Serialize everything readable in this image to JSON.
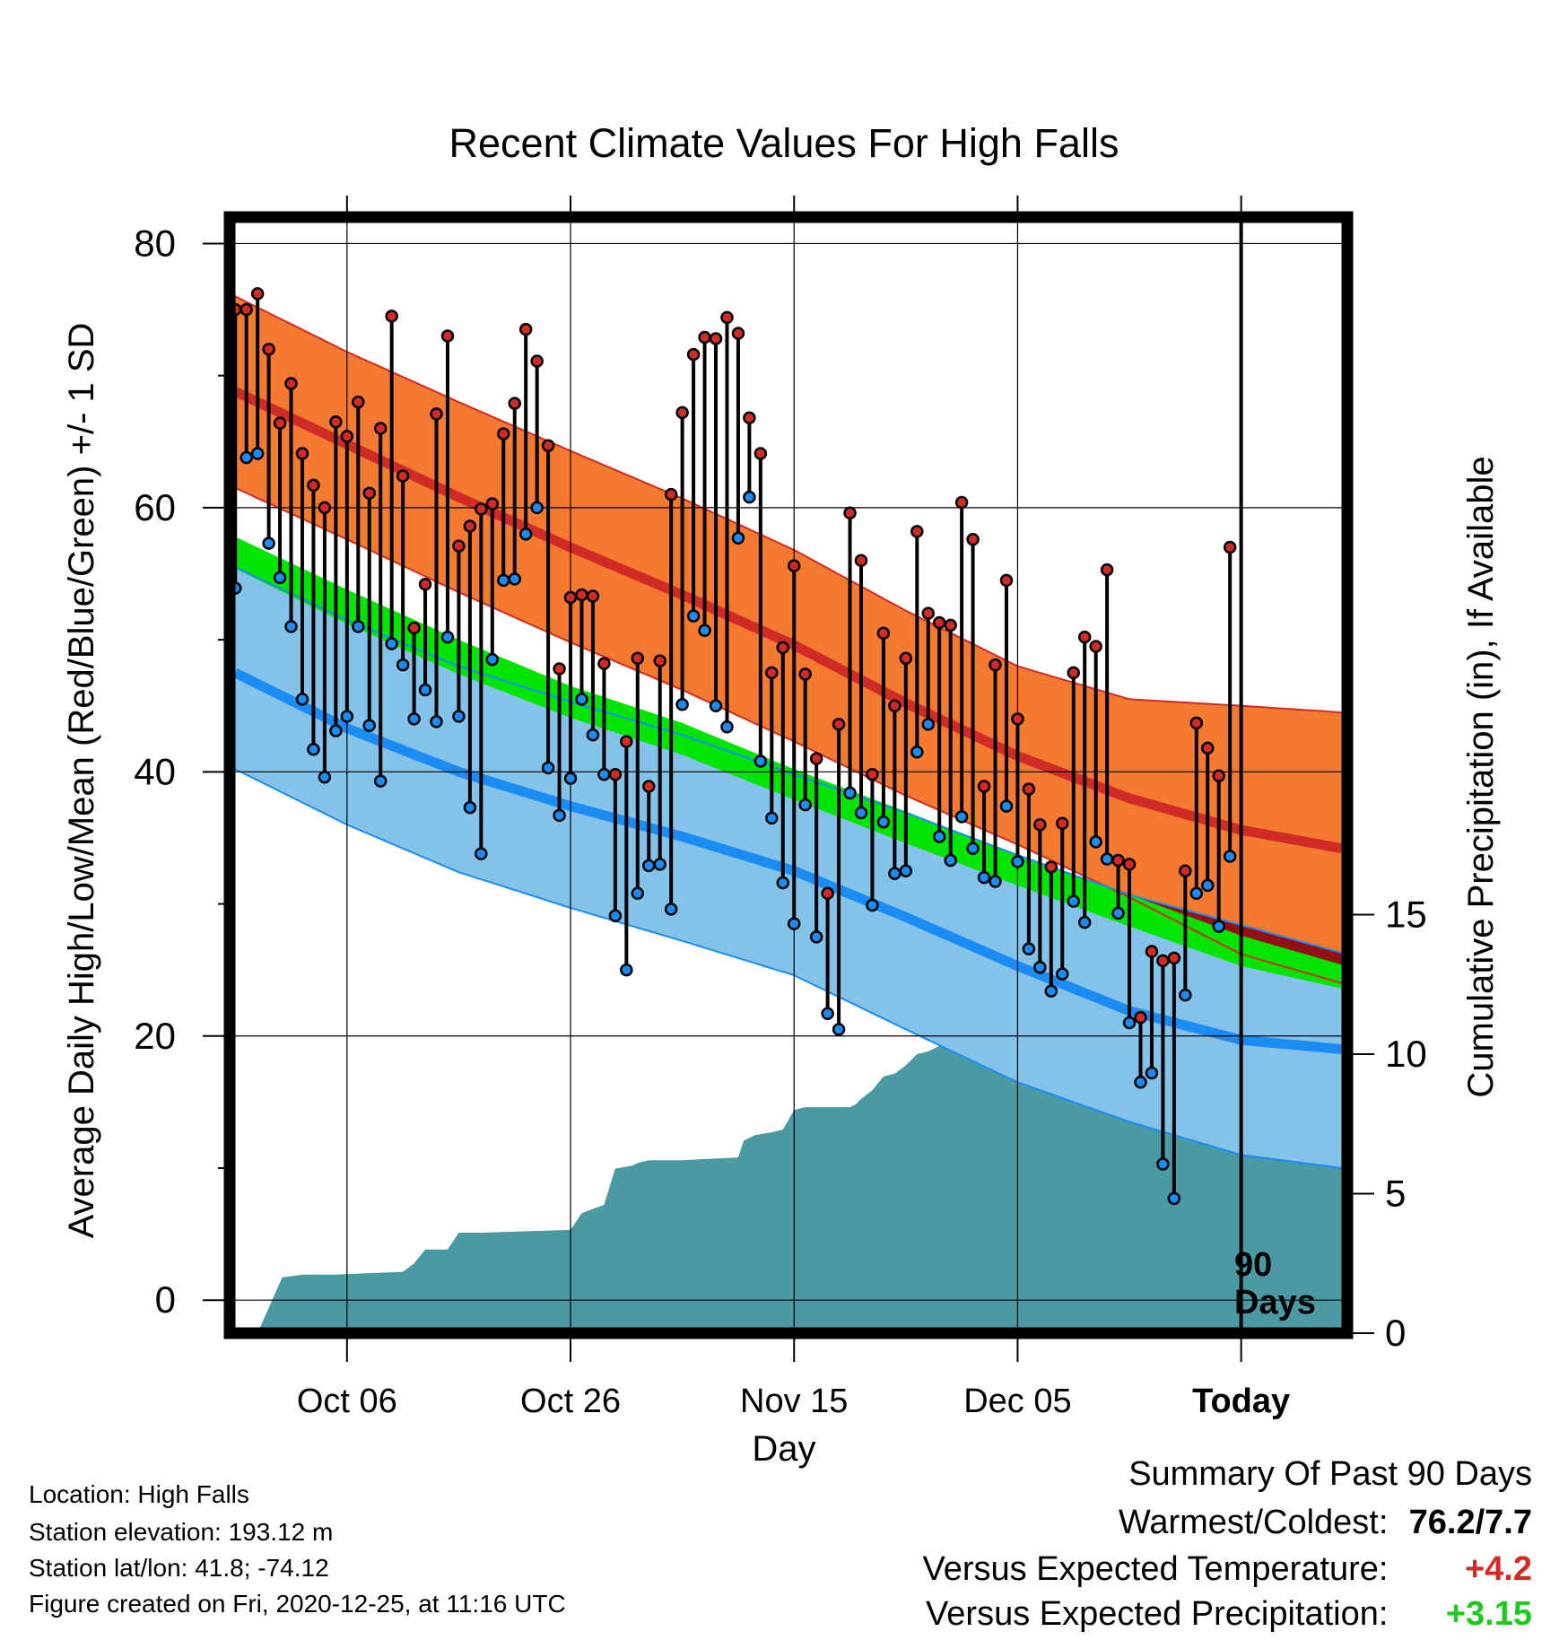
{
  "chart_data": {
    "type": "line",
    "title": "Recent Climate Values For High Falls",
    "xlabel": "Day",
    "ylabel": "Average Daily High/Low/Mean (Red/Blue/Green) +/- 1 SD",
    "y2label": "Cumulative Precipitation (in), If Available",
    "ylim": [
      -2.5,
      82
    ],
    "y2lim": [
      0,
      40
    ],
    "yticks": [
      0,
      20,
      40,
      60,
      80
    ],
    "y2ticks": [
      0,
      5,
      10,
      15
    ],
    "x_tick_days": [
      10,
      30,
      50,
      70,
      90
    ],
    "x_tick_labels": [
      "Oct 06",
      "Oct 26",
      "Nov 15",
      "Dec 05",
      "Today"
    ],
    "xlim": [
      -0.5,
      99.5
    ],
    "today_day": 90,
    "today_label_line1": "90",
    "today_label_line2": "Days",
    "grid": true,
    "colors": {
      "high_band": "#f47a30",
      "high_mean": "#d02b26",
      "low_band": "#85c2e9",
      "low_mean": "#1b8cf3",
      "mean_band": "#00e400",
      "overlap": "#941017",
      "precip": "#4a9aa3",
      "high_point": "#d02b26",
      "low_point": "#1b8cf3"
    },
    "normals": {
      "days": [
        0,
        10,
        20,
        30,
        40,
        50,
        60,
        70,
        80,
        90,
        99
      ],
      "high_mean": [
        68.8,
        64.8,
        60.8,
        57.0,
        53.4,
        49.6,
        45.2,
        41.2,
        38.0,
        35.6,
        34.2
      ],
      "high_upper": [
        76.0,
        71.8,
        68.0,
        64.3,
        60.7,
        56.8,
        52.2,
        48.0,
        45.5,
        45.0,
        44.5
      ],
      "high_lower": [
        61.5,
        57.6,
        53.6,
        49.8,
        46.2,
        42.3,
        38.2,
        34.5,
        30.5,
        26.2,
        24.0
      ],
      "low_mean": [
        47.5,
        43.3,
        40.0,
        37.4,
        35.1,
        32.5,
        29.0,
        25.3,
        21.9,
        19.7,
        19.0
      ],
      "low_upper": [
        55.5,
        51.5,
        48.0,
        45.3,
        42.8,
        39.8,
        36.9,
        33.7,
        30.7,
        28.4,
        26.3
      ],
      "low_lower": [
        40.2,
        36.0,
        32.4,
        29.7,
        27.2,
        24.6,
        20.5,
        16.5,
        13.5,
        11.0,
        10.0
      ],
      "mean_upper": [
        57.8,
        53.8,
        50.0,
        46.5,
        43.7,
        40.2,
        37.0,
        33.7,
        30.7,
        27.6,
        25.4
      ],
      "mean_lower": [
        55.4,
        51.2,
        47.4,
        44.1,
        41.3,
        37.9,
        34.6,
        31.4,
        28.3,
        25.3,
        23.6
      ]
    },
    "series": [
      {
        "name": "High",
        "values": [
          75.0,
          75.0,
          76.2,
          72.0,
          66.4,
          69.4,
          64.1,
          61.7,
          60.0,
          66.5,
          65.4,
          68.0,
          61.1,
          66.0,
          74.5,
          62.4,
          50.9,
          54.2,
          67.1,
          73.0,
          57.1,
          58.6,
          59.9,
          60.3,
          65.6,
          67.9,
          73.5,
          71.1,
          64.7,
          47.8,
          53.2,
          53.4,
          53.3,
          48.2,
          39.8,
          42.3,
          48.6,
          38.9,
          48.4,
          61.0,
          67.2,
          71.6,
          72.9,
          72.8,
          74.4,
          73.2,
          66.8,
          64.1,
          47.5,
          49.4,
          55.6,
          47.4,
          41.0,
          30.8,
          43.6,
          59.6,
          56.0,
          39.8,
          50.5,
          45.0,
          48.6,
          58.2,
          52.0,
          51.3,
          51.1,
          60.4,
          57.6,
          38.9,
          48.1,
          54.5,
          44.0,
          38.7,
          36.0,
          32.8,
          36.1,
          47.5,
          50.2,
          49.5,
          55.3,
          33.3,
          33.0,
          21.4,
          26.4,
          25.7,
          25.9,
          32.5,
          43.7,
          41.8,
          39.7,
          57.0
        ],
        "ylim": [
          -2.5,
          82
        ]
      },
      {
        "name": "Low",
        "values": [
          53.9,
          63.8,
          64.1,
          57.3,
          54.7,
          51.0,
          45.5,
          41.7,
          39.6,
          43.1,
          44.2,
          51.0,
          43.5,
          39.3,
          49.7,
          48.1,
          44.0,
          46.2,
          43.8,
          50.2,
          44.2,
          37.3,
          33.8,
          48.5,
          54.5,
          54.6,
          58.0,
          60.0,
          40.3,
          36.7,
          39.5,
          45.5,
          42.8,
          39.8,
          29.1,
          25.0,
          30.8,
          32.9,
          33.0,
          29.6,
          45.1,
          51.8,
          50.7,
          45.0,
          43.4,
          57.7,
          60.8,
          40.8,
          36.5,
          31.6,
          28.5,
          37.5,
          27.5,
          21.7,
          20.5,
          38.4,
          36.9,
          29.9,
          36.2,
          32.3,
          32.5,
          41.5,
          43.6,
          35.1,
          33.3,
          36.6,
          34.2,
          32.0,
          31.7,
          37.4,
          33.2,
          26.6,
          25.2,
          23.4,
          24.7,
          30.2,
          28.6,
          34.7,
          33.4,
          29.3,
          21.0,
          16.5,
          17.2,
          10.3,
          7.7,
          23.1,
          30.8,
          31.4,
          28.3,
          33.6
        ],
        "ylim": [
          -2.5,
          82
        ]
      }
    ],
    "precipitation": {
      "days": [
        2.0,
        4.2,
        6.0,
        9.0,
        15.0,
        16.0,
        17.0,
        19.0,
        20.0,
        21.0,
        22.0,
        30.0,
        31.0,
        33.0,
        34.0,
        35.5,
        36.0,
        37.0,
        38.0,
        40.0,
        45.0,
        45.5,
        46.5,
        48.0,
        49.0,
        50.0,
        51.0,
        55.0,
        55.5,
        56.0,
        57.0,
        58.0,
        59.0,
        60.0,
        61.0,
        62.0,
        63.0,
        64.0,
        65.0,
        65.5,
        66.0,
        67.0,
        71.0,
        72.0,
        75.0,
        79.0,
        80.0,
        80.5,
        81.0,
        86.0,
        87.0,
        87.5,
        89.0,
        89.5,
        90.0,
        99.5
      ],
      "values": [
        0.0,
        2.0,
        2.1,
        2.1,
        2.2,
        2.5,
        3.0,
        3.0,
        3.6,
        3.6,
        3.6,
        3.7,
        4.3,
        4.6,
        5.9,
        6.0,
        6.1,
        6.2,
        6.2,
        6.2,
        6.3,
        6.9,
        7.1,
        7.2,
        7.3,
        8.0,
        8.1,
        8.1,
        8.2,
        8.4,
        8.7,
        9.2,
        9.3,
        9.6,
        10.0,
        10.1,
        10.3,
        11.2,
        11.5,
        12.0,
        12.1,
        12.2,
        12.2,
        12.3,
        12.3,
        12.4,
        12.6,
        13.0,
        13.3,
        13.5,
        14.0,
        14.3,
        14.3,
        14.5,
        14.5,
        14.5
      ],
      "ylim": [
        0,
        40
      ]
    }
  },
  "footer": {
    "location": "Location: High Falls",
    "elevation": "Station elevation: 193.12 m",
    "latlon": "Station lat/lon: 41.8; -74.12",
    "created": "Figure created on Fri, 2020-12-25, at 11:16 UTC"
  },
  "summary": {
    "title": "Summary Of Past 90 Days",
    "warm_cold_label": "Warmest/Coldest:",
    "warm_cold_value": "76.2/7.7",
    "temp_label": "Versus Expected Temperature:",
    "temp_value": "+4.2",
    "temp_color": "#d02b26",
    "precip_label": "Versus Expected Precipitation:",
    "precip_value": "+3.15",
    "precip_color": "#22c822"
  }
}
